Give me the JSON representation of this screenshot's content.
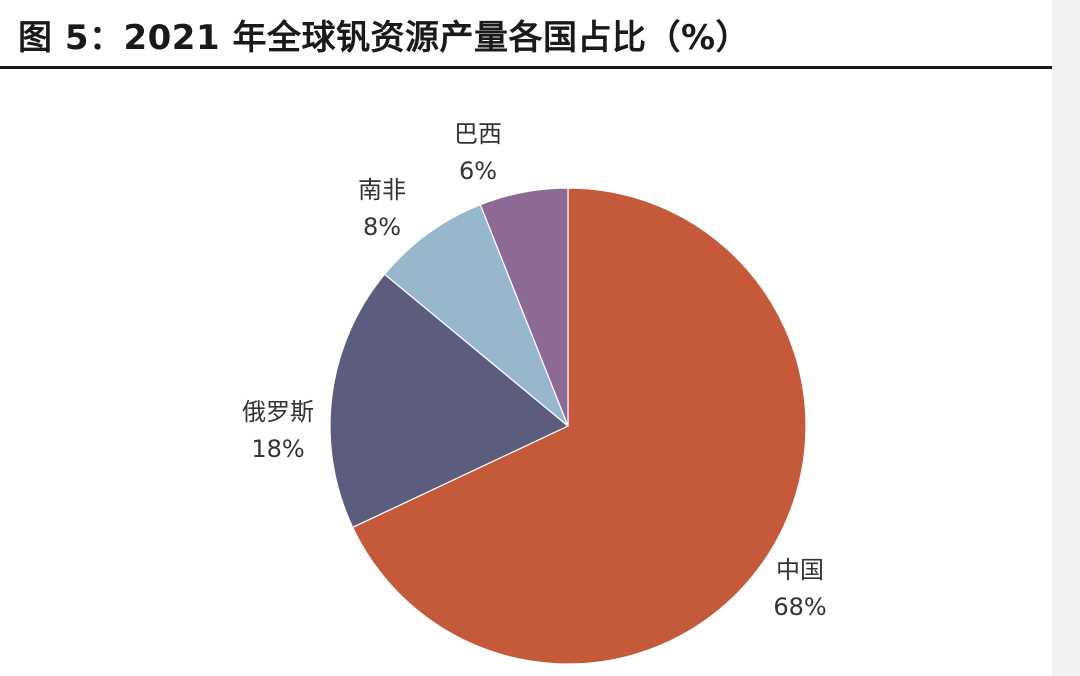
{
  "chart_data": {
    "type": "pie",
    "title": "图 5：2021 年全球钒资源产量各国占比（%）",
    "slices": [
      {
        "label": "中国",
        "value": 68,
        "display": "68%",
        "color": "#c45a3a"
      },
      {
        "label": "俄罗斯",
        "value": 18,
        "display": "18%",
        "color": "#5c5c7e"
      },
      {
        "label": "南非",
        "value": 8,
        "display": "8%",
        "color": "#97b7cc"
      },
      {
        "label": "巴西",
        "value": 6,
        "display": "6%",
        "color": "#8d6a94"
      }
    ],
    "start": "12 o'clock",
    "direction": "clockwise",
    "legend": "none"
  }
}
